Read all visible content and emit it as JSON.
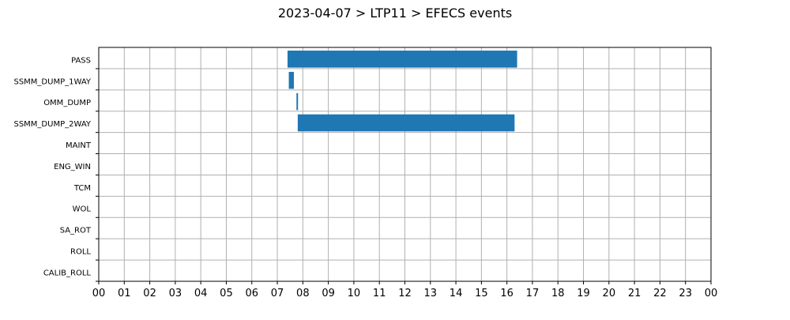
{
  "chart_data": {
    "type": "gantt",
    "title": "2023-04-07 > LTP11 > EFECS events",
    "xlabel": "",
    "ylabel": "",
    "x_unit": "hour",
    "xlim": [
      0,
      24
    ],
    "x_tick_labels": [
      "00",
      "01",
      "02",
      "03",
      "04",
      "05",
      "06",
      "07",
      "08",
      "09",
      "10",
      "11",
      "12",
      "13",
      "14",
      "15",
      "16",
      "17",
      "18",
      "19",
      "20",
      "21",
      "22",
      "23",
      "00"
    ],
    "categories": [
      "PASS",
      "SSMM_DUMP_1WAY",
      "OMM_DUMP",
      "SSMM_DUMP_2WAY",
      "MAINT",
      "ENG_WIN",
      "TCM",
      "WOL",
      "SA_ROT",
      "ROLL",
      "CALIB_ROLL"
    ],
    "bar_color": "#1f77b4",
    "grid": true,
    "events": [
      {
        "category": "PASS",
        "start": 7.4,
        "end": 16.4
      },
      {
        "category": "SSMM_DUMP_1WAY",
        "start": 7.45,
        "end": 7.65
      },
      {
        "category": "OMM_DUMP",
        "start": 7.75,
        "end": 7.8
      },
      {
        "category": "SSMM_DUMP_2WAY",
        "start": 7.8,
        "end": 16.3
      }
    ]
  }
}
